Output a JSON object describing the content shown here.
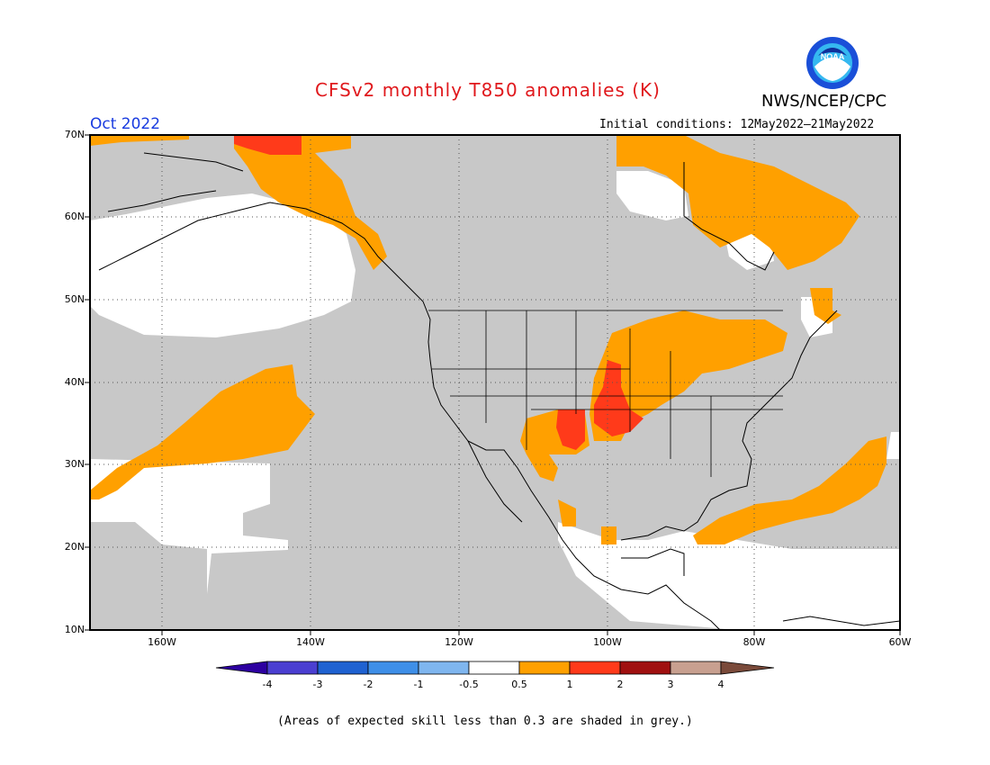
{
  "header": {
    "title": "CFSv2 monthly T850 anomalies (K)",
    "agency": "NWS/NCEP/CPC",
    "logo_text": "NOAA",
    "month": "Oct 2022",
    "initial_conditions": "Initial conditions: 12May2022–21May2022"
  },
  "axes": {
    "lat_labels": [
      "70N",
      "60N",
      "50N",
      "40N",
      "30N",
      "20N",
      "10N"
    ],
    "lon_labels": [
      "160W",
      "140W",
      "120W",
      "100W",
      "80W",
      "60W"
    ]
  },
  "colorbar": {
    "labels": [
      "-4",
      "-3",
      "-2",
      "-1",
      "-0.5",
      "0.5",
      "1",
      "2",
      "3",
      "4"
    ],
    "colors": [
      "#2d00a0",
      "#4b3fd1",
      "#1f62d1",
      "#3f8fe8",
      "#7fb6ef",
      "#ffffff",
      "#ffa000",
      "#ff3a1a",
      "#a01010",
      "#c8a090",
      "#7a4a3a"
    ]
  },
  "legend_colors": {
    "grey": "#c8c8c8",
    "orange": "#ffa000",
    "red": "#ff3a1a"
  },
  "footnote": "(Areas of expected skill less than 0.3 are shaded in grey.)"
}
